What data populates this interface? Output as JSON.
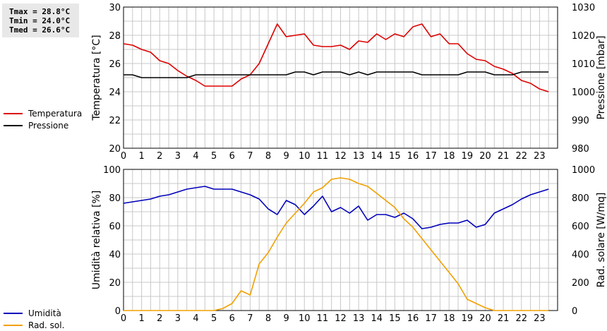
{
  "stats": {
    "tmax": "Tmax = 28.8°C",
    "tmin": "Tmin = 24.0°C",
    "tmed": "Tmed = 26.6°C"
  },
  "colors": {
    "temperature": "#dd0000",
    "pressure": "#000000",
    "humidity": "#0000bb",
    "solar": "#f0a000",
    "grid": "#c8c8c8"
  },
  "chart_data": [
    {
      "type": "line",
      "xlabel": "",
      "x_ticks": [
        "0",
        "1",
        "2",
        "3",
        "4",
        "5",
        "6",
        "7",
        "8",
        "9",
        "10",
        "11",
        "12",
        "13",
        "14",
        "15",
        "16",
        "17",
        "18",
        "19",
        "20",
        "21",
        "22",
        "23"
      ],
      "xlim": [
        0,
        24
      ],
      "grid": true,
      "legend_placement": "left",
      "left_axis": {
        "label": "Temperatura [°C]",
        "ylim": [
          20,
          30
        ],
        "ticks": [
          "20",
          "22",
          "24",
          "26",
          "28",
          "30"
        ]
      },
      "right_axis": {
        "label": "Pressione [mbar]",
        "ylim": [
          980,
          1030
        ],
        "ticks": [
          "980",
          "990",
          "1000",
          "1010",
          "1020",
          "1030"
        ]
      },
      "series": [
        {
          "name": "Temperatura",
          "axis": "left",
          "x": [
            0,
            0.5,
            1,
            1.5,
            2,
            2.5,
            3,
            3.5,
            4,
            4.5,
            5,
            5.5,
            6,
            6.5,
            7,
            7.5,
            8,
            8.5,
            9,
            9.5,
            10,
            10.5,
            11,
            11.5,
            12,
            12.5,
            13,
            13.5,
            14,
            14.5,
            15,
            15.5,
            16,
            16.5,
            17,
            17.5,
            18,
            18.5,
            19,
            19.5,
            20,
            20.5,
            21,
            21.5,
            22,
            22.5,
            23,
            23.5
          ],
          "values": [
            27.4,
            27.3,
            27.0,
            26.8,
            26.2,
            26.0,
            25.5,
            25.1,
            24.8,
            24.4,
            24.4,
            24.4,
            24.4,
            24.9,
            25.2,
            26.0,
            27.4,
            28.8,
            27.9,
            28.0,
            28.1,
            27.3,
            27.2,
            27.2,
            27.3,
            27.0,
            27.6,
            27.5,
            28.1,
            27.7,
            28.1,
            27.9,
            28.6,
            28.8,
            27.9,
            28.1,
            27.4,
            27.4,
            26.7,
            26.3,
            26.2,
            25.8,
            25.6,
            25.3,
            24.8,
            24.6,
            24.2,
            24.0
          ]
        },
        {
          "name": "Pressione",
          "axis": "right",
          "x": [
            0,
            0.5,
            1,
            1.5,
            2,
            2.5,
            3,
            3.5,
            4,
            4.5,
            5,
            5.5,
            6,
            6.5,
            7,
            7.5,
            8,
            8.5,
            9,
            9.5,
            10,
            10.5,
            11,
            11.5,
            12,
            12.5,
            13,
            13.5,
            14,
            14.5,
            15,
            15.5,
            16,
            16.5,
            17,
            17.5,
            18,
            18.5,
            19,
            19.5,
            20,
            20.5,
            21,
            21.5,
            22,
            22.5,
            23,
            23.5
          ],
          "values": [
            1006,
            1006,
            1005,
            1005,
            1005,
            1005,
            1005,
            1005,
            1006,
            1006,
            1006,
            1006,
            1006,
            1006,
            1006,
            1006,
            1006,
            1006,
            1006,
            1007,
            1007,
            1006,
            1007,
            1007,
            1007,
            1006,
            1007,
            1006,
            1007,
            1007,
            1007,
            1007,
            1007,
            1006,
            1006,
            1006,
            1006,
            1006,
            1007,
            1007,
            1007,
            1006,
            1006,
            1006,
            1007,
            1007,
            1007,
            1007
          ]
        }
      ]
    },
    {
      "type": "line",
      "xlabel": "",
      "x_ticks": [
        "0",
        "1",
        "2",
        "3",
        "4",
        "5",
        "6",
        "7",
        "8",
        "9",
        "10",
        "11",
        "12",
        "13",
        "14",
        "15",
        "16",
        "17",
        "18",
        "19",
        "20",
        "21",
        "22",
        "23"
      ],
      "xlim": [
        0,
        24
      ],
      "grid": true,
      "legend_placement": "left",
      "left_axis": {
        "label": "Umidità relativa [%]",
        "ylim": [
          0,
          100
        ],
        "ticks": [
          "0",
          "20",
          "40",
          "60",
          "80",
          "100"
        ]
      },
      "right_axis": {
        "label": "Rad. solare [W/mq]",
        "ylim": [
          0,
          1000
        ],
        "ticks": [
          "0",
          "200",
          "400",
          "600",
          "800",
          "1000"
        ]
      },
      "series": [
        {
          "name": "Umidità",
          "axis": "left",
          "x": [
            0,
            0.5,
            1,
            1.5,
            2,
            2.5,
            3,
            3.5,
            4,
            4.5,
            5,
            5.5,
            6,
            6.5,
            7,
            7.5,
            8,
            8.5,
            9,
            9.5,
            10,
            10.5,
            11,
            11.5,
            12,
            12.5,
            13,
            13.5,
            14,
            14.5,
            15,
            15.5,
            16,
            16.5,
            17,
            17.5,
            18,
            18.5,
            19,
            19.5,
            20,
            20.5,
            21,
            21.5,
            22,
            22.5,
            23,
            23.5
          ],
          "values": [
            76,
            77,
            78,
            79,
            81,
            82,
            84,
            86,
            87,
            88,
            86,
            86,
            86,
            84,
            82,
            79,
            72,
            68,
            78,
            75,
            68,
            74,
            81,
            70,
            73,
            69,
            74,
            64,
            68,
            68,
            66,
            69,
            65,
            58,
            59,
            61,
            62,
            62,
            64,
            59,
            61,
            69,
            72,
            75,
            79,
            82,
            84,
            86
          ]
        },
        {
          "name": "Rad. sol.",
          "axis": "right",
          "x": [
            0,
            0.5,
            1,
            1.5,
            2,
            2.5,
            3,
            3.5,
            4,
            4.5,
            5,
            5.5,
            6,
            6.5,
            7,
            7.5,
            8,
            8.5,
            9,
            9.5,
            10,
            10.5,
            11,
            11.5,
            12,
            12.5,
            13,
            13.5,
            14,
            14.5,
            15,
            15.5,
            16,
            16.5,
            17,
            17.5,
            18,
            18.5,
            19,
            19.5,
            20,
            20.5,
            21,
            21.5,
            22,
            22.5,
            23,
            23.5
          ],
          "values": [
            0,
            0,
            0,
            0,
            0,
            0,
            0,
            0,
            0,
            0,
            0,
            15,
            50,
            140,
            110,
            330,
            410,
            520,
            620,
            690,
            760,
            840,
            870,
            930,
            940,
            930,
            900,
            880,
            830,
            780,
            730,
            650,
            590,
            510,
            430,
            350,
            270,
            190,
            80,
            50,
            20,
            0,
            0,
            0,
            0,
            0,
            0,
            0
          ]
        }
      ]
    }
  ]
}
